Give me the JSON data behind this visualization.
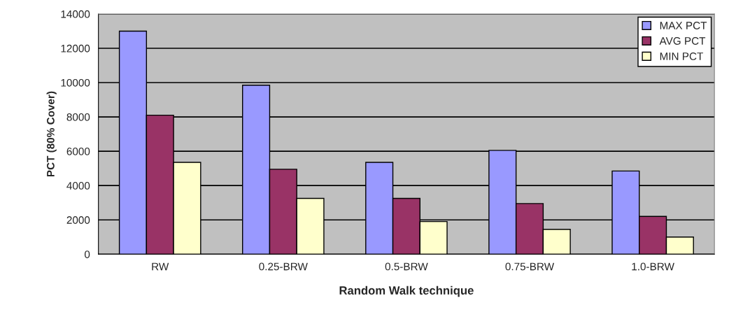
{
  "chart_data": {
    "type": "bar",
    "xlabel": "Random Walk technique",
    "ylabel": "PCT (80% Cover)",
    "categories": [
      "RW",
      "0.25-BRW",
      "0.5-BRW",
      "0.75-BRW",
      "1.0-BRW"
    ],
    "series": [
      {
        "name": "MAX PCT",
        "color": "#9999ff",
        "values": [
          13000,
          9850,
          5350,
          6050,
          4850
        ]
      },
      {
        "name": "AVG PCT",
        "color": "#993366",
        "values": [
          8100,
          4950,
          3250,
          2950,
          2200
        ]
      },
      {
        "name": "MIN PCT",
        "color": "#ffffcc",
        "values": [
          5350,
          3250,
          1900,
          1450,
          1000
        ]
      }
    ],
    "ylim": [
      0,
      14000
    ],
    "yticks": [
      0,
      2000,
      4000,
      6000,
      8000,
      10000,
      12000,
      14000
    ],
    "grid": "y",
    "legend": "top right"
  }
}
